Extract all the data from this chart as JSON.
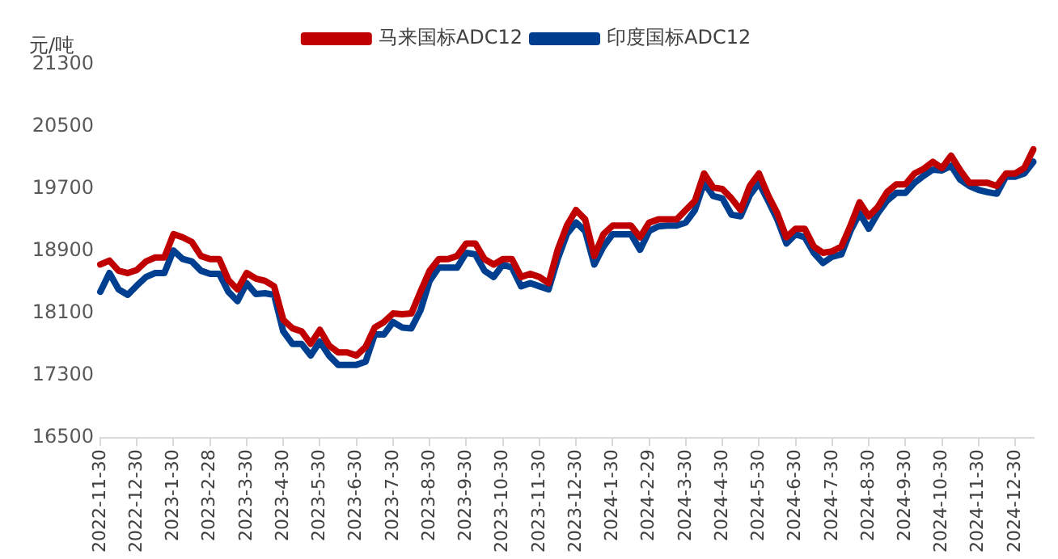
{
  "chart_data": {
    "type": "line",
    "ylabel": "元/吨",
    "legend": "top",
    "grid": false,
    "marker": "none",
    "line_style": "solid",
    "categories": [
      "2022-11-30",
      null,
      null,
      null,
      "2022-12-30",
      null,
      null,
      null,
      "2023-1-30",
      null,
      null,
      null,
      "2023-2-28",
      null,
      null,
      null,
      "2023-3-30",
      null,
      null,
      null,
      "2023-4-30",
      null,
      null,
      null,
      "2023-5-30",
      null,
      null,
      null,
      "2023-6-30",
      null,
      null,
      null,
      "2023-7-30",
      null,
      null,
      null,
      "2023-8-30",
      null,
      null,
      null,
      "2023-9-30",
      null,
      null,
      null,
      "2023-10-30",
      null,
      null,
      null,
      "2023-11-30",
      null,
      null,
      null,
      "2023-12-30",
      null,
      null,
      null,
      "2024-1-30",
      null,
      null,
      null,
      "2024-2-29",
      null,
      null,
      null,
      "2024-3-30",
      null,
      null,
      null,
      "2024-4-30",
      null,
      null,
      null,
      "2024-5-30",
      null,
      null,
      null,
      "2024-6-30",
      null,
      null,
      null,
      "2024-7-30",
      null,
      null,
      null,
      "2024-8-30",
      null,
      null,
      null,
      "2024-9-30",
      null,
      null,
      null,
      "2024-10-30",
      null,
      null,
      null,
      "2024-11-30",
      null,
      null,
      null,
      "2024-12-30",
      null,
      null
    ],
    "ylim": [
      16500,
      21300
    ],
    "yticks": [
      16500,
      17300,
      18100,
      18900,
      19700,
      20500,
      21300
    ],
    "series": [
      {
        "name": "马来国标ADC12",
        "color": "#c00000",
        "values": [
          18730,
          18780,
          18650,
          18620,
          18660,
          18770,
          18820,
          18820,
          19120,
          19080,
          19020,
          18840,
          18800,
          18800,
          18530,
          18410,
          18620,
          18550,
          18520,
          18450,
          18020,
          17910,
          17870,
          17710,
          17890,
          17690,
          17600,
          17600,
          17560,
          17670,
          17920,
          17990,
          18100,
          18090,
          18100,
          18380,
          18650,
          18800,
          18800,
          18840,
          19000,
          19000,
          18800,
          18730,
          18800,
          18800,
          18570,
          18610,
          18570,
          18490,
          18920,
          19230,
          19430,
          19310,
          18840,
          19120,
          19230,
          19230,
          19230,
          19080,
          19270,
          19310,
          19310,
          19310,
          19430,
          19550,
          19900,
          19720,
          19700,
          19580,
          19430,
          19740,
          19900,
          19620,
          19390,
          19080,
          19190,
          19190,
          18960,
          18880,
          18900,
          18960,
          19230,
          19530,
          19350,
          19470,
          19660,
          19760,
          19760,
          19900,
          19960,
          20050,
          19970,
          20130,
          19940,
          19780,
          19780,
          19780,
          19740,
          19900,
          19900,
          19970,
          20210
        ]
      },
      {
        "name": "印度国标ADC12",
        "color": "#003f8f",
        "values": [
          18380,
          18620,
          18410,
          18340,
          18460,
          18570,
          18620,
          18620,
          18910,
          18800,
          18770,
          18650,
          18610,
          18610,
          18380,
          18260,
          18490,
          18350,
          18360,
          18340,
          17870,
          17710,
          17710,
          17560,
          17740,
          17560,
          17440,
          17440,
          17440,
          17480,
          17830,
          17830,
          17990,
          17920,
          17910,
          18140,
          18520,
          18690,
          18690,
          18690,
          18880,
          18860,
          18650,
          18570,
          18730,
          18690,
          18450,
          18490,
          18450,
          18410,
          18800,
          19120,
          19270,
          19160,
          18730,
          18960,
          19120,
          19120,
          19120,
          18920,
          19160,
          19220,
          19230,
          19230,
          19270,
          19430,
          19780,
          19610,
          19580,
          19370,
          19350,
          19620,
          19780,
          19550,
          19310,
          19000,
          19120,
          19080,
          18880,
          18750,
          18830,
          18860,
          19160,
          19390,
          19190,
          19390,
          19550,
          19650,
          19650,
          19780,
          19870,
          19950,
          19940,
          20000,
          19820,
          19740,
          19690,
          19660,
          19640,
          19860,
          19860,
          19900,
          20050
        ]
      }
    ]
  }
}
